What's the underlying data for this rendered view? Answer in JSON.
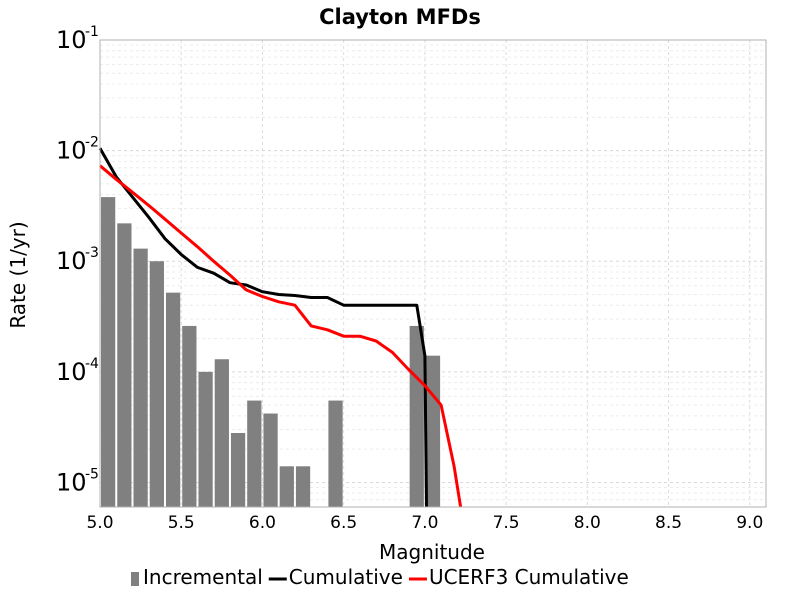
{
  "chart_data": {
    "type": "bar",
    "title": "Clayton MFDs",
    "xlabel": "Magnitude",
    "ylabel": "Rate (1/yr)",
    "xlim": [
      5.0,
      9.1
    ],
    "ylim": [
      6e-06,
      0.1
    ],
    "yscale": "log",
    "grid": true,
    "legend_position": "bottom",
    "x_ticks": [
      "5.0",
      "5.5",
      "6.0",
      "6.5",
      "7.0",
      "7.5",
      "8.0",
      "8.5",
      "9.0"
    ],
    "y_ticks": [
      {
        "base": "10",
        "exp": "-1"
      },
      {
        "base": "10",
        "exp": "-2"
      },
      {
        "base": "10",
        "exp": "-3"
      },
      {
        "base": "10",
        "exp": "-4"
      },
      {
        "base": "10",
        "exp": "-5"
      }
    ],
    "series": [
      {
        "name": "Incremental",
        "type": "bar",
        "color": "#808080",
        "bar_width": 0.1,
        "x": [
          5.05,
          5.15,
          5.25,
          5.35,
          5.45,
          5.55,
          5.65,
          5.75,
          5.85,
          5.95,
          6.05,
          6.15,
          6.25,
          6.45,
          6.95,
          7.05
        ],
        "y": [
          0.0038,
          0.0022,
          0.0013,
          0.001,
          0.00052,
          0.00026,
          0.0001,
          0.00013,
          2.8e-05,
          5.5e-05,
          4.2e-05,
          1.4e-05,
          1.4e-05,
          5.5e-05,
          0.00026,
          0.00014
        ]
      },
      {
        "name": "Cumulative",
        "type": "line",
        "color": "#000000",
        "x": [
          5.0,
          5.1,
          5.2,
          5.3,
          5.4,
          5.5,
          5.6,
          5.7,
          5.8,
          5.9,
          6.0,
          6.1,
          6.2,
          6.3,
          6.4,
          6.5,
          6.6,
          6.7,
          6.8,
          6.9,
          6.95,
          7.0,
          7.01
        ],
        "y": [
          0.0105,
          0.0058,
          0.0038,
          0.0025,
          0.0016,
          0.00115,
          0.00088,
          0.00078,
          0.00064,
          0.00061,
          0.00053,
          0.0005,
          0.00049,
          0.00047,
          0.00047,
          0.0004,
          0.0004,
          0.0004,
          0.0004,
          0.0004,
          0.0004,
          0.00014,
          6e-06
        ]
      },
      {
        "name": "UCERF3 Cumulative",
        "type": "line",
        "color": "#ff0000",
        "x": [
          5.0,
          5.1,
          5.2,
          5.3,
          5.4,
          5.5,
          5.6,
          5.7,
          5.8,
          5.9,
          6.0,
          6.1,
          6.2,
          6.3,
          6.4,
          6.5,
          6.6,
          6.7,
          6.8,
          6.9,
          7.0,
          7.1,
          7.18,
          7.22
        ],
        "y": [
          0.0073,
          0.0055,
          0.0042,
          0.0032,
          0.0024,
          0.0018,
          0.00135,
          0.001,
          0.00075,
          0.00055,
          0.00048,
          0.00043,
          0.0004,
          0.00026,
          0.00024,
          0.00021,
          0.00021,
          0.00019,
          0.00015,
          0.000105,
          7.5e-05,
          5e-05,
          1.4e-05,
          6e-06
        ]
      }
    ]
  }
}
